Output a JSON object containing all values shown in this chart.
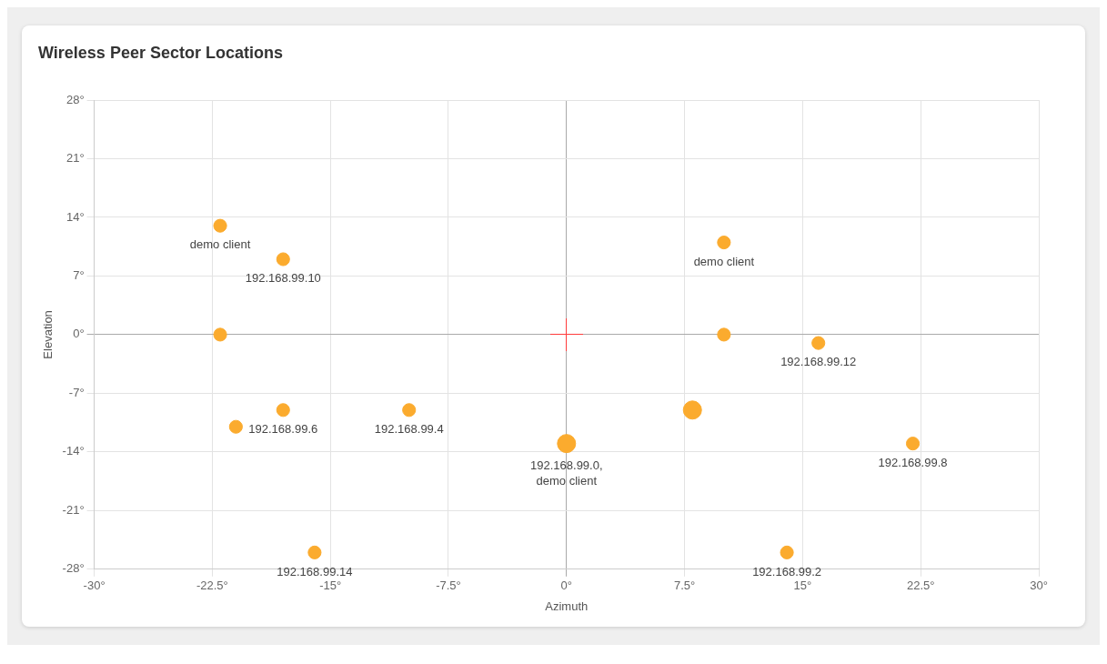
{
  "chart_data": {
    "type": "bubble",
    "title": "Wireless Peer Sector Locations",
    "xlabel": "Azimuth",
    "ylabel": "Elevation",
    "xlim": [
      -30,
      30
    ],
    "xticks": [
      {
        "value": -30,
        "label": "-30°"
      },
      {
        "value": -22.5,
        "label": "-22.5°"
      },
      {
        "value": -15,
        "label": "-15°"
      },
      {
        "value": -7.5,
        "label": "-7.5°"
      },
      {
        "value": 0,
        "label": "0°"
      },
      {
        "value": 7.5,
        "label": "7.5°"
      },
      {
        "value": 15,
        "label": "15°"
      },
      {
        "value": 22.5,
        "label": "22.5°"
      },
      {
        "value": 30,
        "label": "30°"
      }
    ],
    "ylim": [
      -28,
      28
    ],
    "yticks": [
      {
        "value": -28,
        "label": "-28°"
      },
      {
        "value": -21,
        "label": "-21°"
      },
      {
        "value": -14,
        "label": "-14°"
      },
      {
        "value": -7,
        "label": "-7°"
      },
      {
        "value": 0,
        "label": "0°"
      },
      {
        "value": 7,
        "label": "7°"
      },
      {
        "value": 14,
        "label": "14°"
      },
      {
        "value": 21,
        "label": "21°"
      },
      {
        "value": 28,
        "label": "28°"
      }
    ],
    "grid": true,
    "legend": false,
    "marker": "circle",
    "series": [
      {
        "color": "#fbab2e",
        "x": [
          -22,
          -18,
          -22,
          10,
          10,
          16,
          -21,
          -18,
          -10,
          0,
          8,
          22,
          -16,
          14
        ],
        "values": [
          13,
          9,
          0,
          11,
          0,
          -1,
          -11,
          -9,
          -9,
          -13,
          -9,
          -13,
          -26,
          -26
        ],
        "sizes": [
          0.5,
          0.5,
          0.5,
          0.5,
          0.5,
          0.5,
          0.5,
          0.5,
          0.5,
          1,
          1,
          0.5,
          0.5,
          0.5
        ],
        "value_labels": [
          "demo client",
          "192.168.99.10",
          null,
          "demo client",
          null,
          "192.168.99.12",
          null,
          "192.168.99.6",
          "192.168.99.4",
          "192.168.99.0, demo client",
          null,
          "192.168.99.8",
          "192.168.99.14",
          "192.168.99.2"
        ]
      }
    ]
  }
}
